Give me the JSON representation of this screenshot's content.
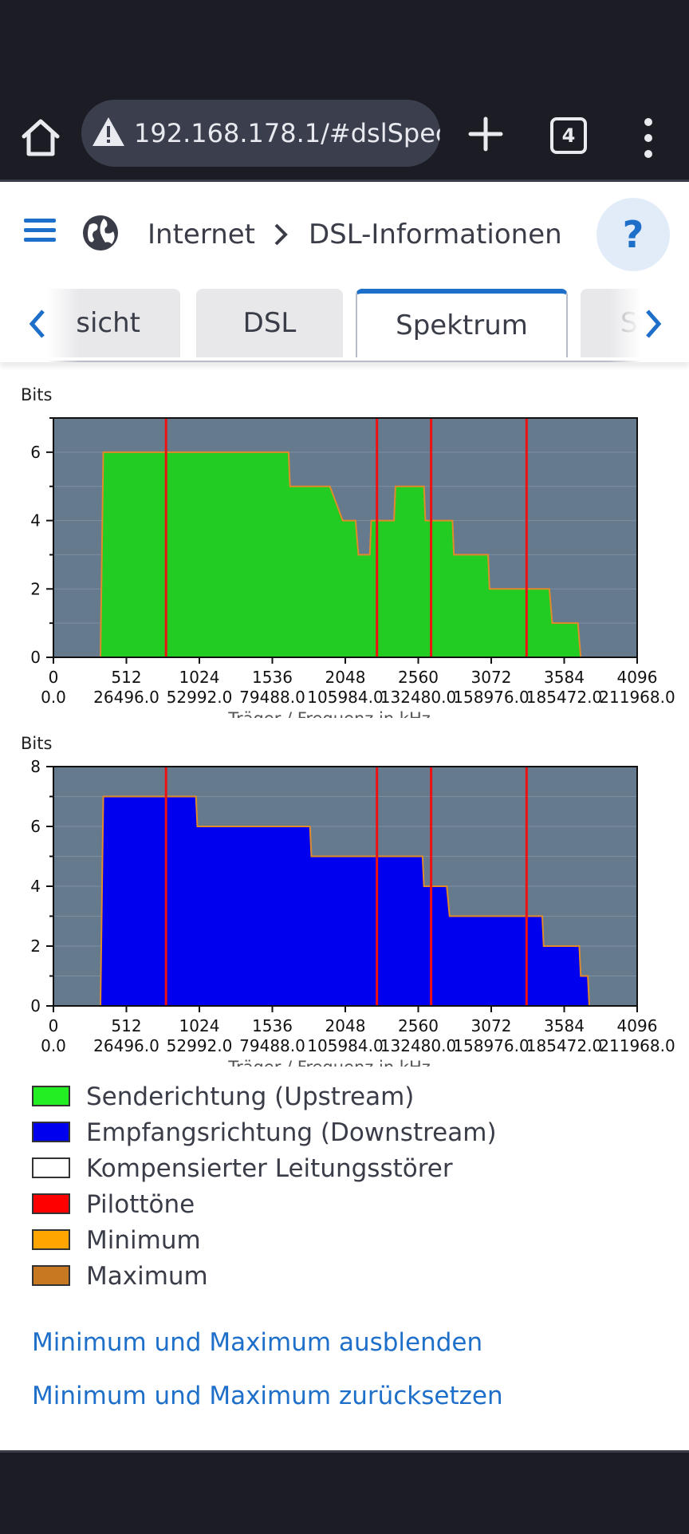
{
  "browser": {
    "url": "192.168.178.1/#dslSpec",
    "tab_count": "4"
  },
  "header": {
    "breadcrumb": [
      "Internet",
      "DSL-Informationen"
    ],
    "help_label": "?"
  },
  "tabs": [
    {
      "label": "Übersicht",
      "visible_text": "sicht"
    },
    {
      "label": "DSL"
    },
    {
      "label": "Spektrum",
      "active": true
    },
    {
      "label": "Statistik",
      "visible_text": "St"
    }
  ],
  "chart_data": [
    {
      "type": "area",
      "ylabel": "Bits",
      "xlabel": "Träger / Frequenz in kHz",
      "xlim": [
        0,
        4096
      ],
      "ylim": [
        0,
        7
      ],
      "yticks": [
        0,
        2,
        4,
        6
      ],
      "xticks": [
        0,
        512,
        1024,
        1536,
        2048,
        2560,
        3072,
        3584,
        4096
      ],
      "xtick_labels_top": [
        "0",
        "512",
        "1024",
        "1536",
        "2048",
        "2560",
        "3072",
        "3584",
        "4096"
      ],
      "xtick_labels_bottom": [
        "0.0",
        "26496.0",
        "52992.0",
        "79488.0",
        "105984.0",
        "132480.0",
        "158976.0",
        "185472.0",
        "211968.0"
      ],
      "series": [
        {
          "name": "Senderichtung (Upstream)",
          "color": "#22cc22",
          "x": [
            330,
            350,
            355,
            1650,
            1660,
            1720,
            1730,
            1940,
            2030,
            2120,
            2140,
            2220,
            2230,
            2390,
            2400,
            2430,
            2440,
            2600,
            2610,
            2800,
            2810,
            3050,
            3060,
            3480,
            3500,
            3680,
            3700
          ],
          "y": [
            0,
            6,
            6,
            6,
            5,
            5,
            5,
            5,
            4,
            4,
            3,
            3,
            4,
            4,
            5,
            5,
            5,
            5,
            4,
            4,
            3,
            3,
            2,
            2,
            1,
            1,
            0
          ]
        },
        {
          "name": "Pilottöne",
          "color": "#ee1111",
          "x": [
            790,
            2270,
            2650,
            3320
          ]
        }
      ]
    },
    {
      "type": "area",
      "ylabel": "Bits",
      "xlabel": "Träger / Frequenz in kHz",
      "xlim": [
        0,
        4096
      ],
      "ylim": [
        0,
        8
      ],
      "yticks": [
        0,
        2,
        4,
        6,
        8
      ],
      "xticks": [
        0,
        512,
        1024,
        1536,
        2048,
        2560,
        3072,
        3584,
        4096
      ],
      "xtick_labels_top": [
        "0",
        "512",
        "1024",
        "1536",
        "2048",
        "2560",
        "3072",
        "3584",
        "4096"
      ],
      "xtick_labels_bottom": [
        "0.0",
        "26496.0",
        "52992.0",
        "79488.0",
        "105984.0",
        "132480.0",
        "158976.0",
        "185472.0",
        "211968.0"
      ],
      "series": [
        {
          "name": "Empfangsrichtung (Downstream)",
          "color": "#0000ee",
          "x": [
            330,
            350,
            355,
            1000,
            1010,
            1800,
            1810,
            2060,
            2070,
            2590,
            2600,
            2760,
            2780,
            3430,
            3440,
            3690,
            3700,
            3750,
            3760
          ],
          "y": [
            0,
            7,
            7,
            7,
            6,
            6,
            5,
            5,
            5,
            5,
            4,
            4,
            3,
            3,
            2,
            2,
            1,
            1,
            0
          ]
        },
        {
          "name": "Pilottöne",
          "color": "#ee1111",
          "x": [
            790,
            2270,
            2650,
            3320
          ]
        }
      ]
    }
  ],
  "legend": [
    {
      "label": "Senderichtung (Upstream)",
      "color": "#22ee22"
    },
    {
      "label": "Empfangsrichtung (Downstream)",
      "color": "#0000ee"
    },
    {
      "label": "Kompensierter Leitungsstörer",
      "color": "#ffffff"
    },
    {
      "label": "Pilottöne",
      "color": "#ff0000"
    },
    {
      "label": "Minimum",
      "color": "#ffa500"
    },
    {
      "label": "Maximum",
      "color": "#c87820"
    }
  ],
  "links": {
    "hide_minmax": "Minimum und Maximum ausblenden",
    "reset_minmax": "Minimum und Maximum zurücksetzen"
  }
}
